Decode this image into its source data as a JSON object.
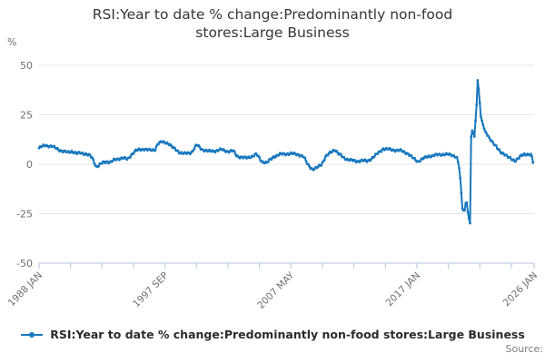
{
  "header": {
    "window_title": "RSI chart"
  },
  "chart_data": {
    "type": "line",
    "title": "RSI:Year to date % change:Predominantly non-food stores:Large Business",
    "unit_label": "%",
    "xlabel": "",
    "ylabel": "%",
    "ylim": [
      -50,
      50
    ],
    "yticks": [
      50,
      25,
      0,
      -25,
      -50
    ],
    "x_start_year": 1988.0,
    "x_end_year": 2026.0,
    "x_minor_tick_interval_months": 29,
    "xtick_labels": [
      {
        "label": "1988 JAN",
        "year": 1988.0
      },
      {
        "label": "1997 SEP",
        "year": 1997.667
      },
      {
        "label": "2007 MAY",
        "year": 2007.333
      },
      {
        "label": "2017 JAN",
        "year": 2017.0
      },
      {
        "label": "2026 JAN",
        "year": 2026.0
      }
    ],
    "grid": true,
    "legend_position": "bottom",
    "series": [
      {
        "name": "RSI:Year to date % change:Predominantly non-food stores:Large Business",
        "color": "#1878be",
        "sampling": "monthly",
        "marker": "circle",
        "anchors": [
          [
            1988.0,
            8.2
          ],
          [
            1988.25,
            9.0
          ],
          [
            1988.5,
            9.6
          ],
          [
            1988.75,
            9.3
          ],
          [
            1989.0,
            9.0
          ],
          [
            1989.4,
            7.8
          ],
          [
            1989.8,
            6.6
          ],
          [
            1990.2,
            6.0
          ],
          [
            1990.5,
            6.6
          ],
          [
            1990.9,
            5.4
          ],
          [
            1991.2,
            5.8
          ],
          [
            1991.6,
            5.2
          ],
          [
            1991.9,
            4.3
          ],
          [
            1992.1,
            3.0
          ],
          [
            1992.4,
            -1.3
          ],
          [
            1992.6,
            -0.6
          ],
          [
            1992.9,
            0.8
          ],
          [
            1993.2,
            1.4
          ],
          [
            1993.5,
            1.1
          ],
          [
            1993.8,
            2.2
          ],
          [
            1994.1,
            2.8
          ],
          [
            1994.4,
            3.3
          ],
          [
            1994.8,
            2.4
          ],
          [
            1995.1,
            5.0
          ],
          [
            1995.4,
            6.8
          ],
          [
            1995.8,
            7.4
          ],
          [
            1996.1,
            7.8
          ],
          [
            1996.5,
            7.0
          ],
          [
            1996.9,
            7.3
          ],
          [
            1997.1,
            10.4
          ],
          [
            1997.4,
            11.2
          ],
          [
            1997.9,
            10.8
          ],
          [
            1998.3,
            8.2
          ],
          [
            1998.8,
            6.0
          ],
          [
            1999.2,
            5.3
          ],
          [
            1999.7,
            6.0
          ],
          [
            2000.1,
            9.8
          ],
          [
            2000.5,
            7.6
          ],
          [
            2001.0,
            6.5
          ],
          [
            2001.5,
            6.8
          ],
          [
            2002.0,
            7.4
          ],
          [
            2002.5,
            6.5
          ],
          [
            2002.9,
            6.8
          ],
          [
            2003.2,
            4.1
          ],
          [
            2003.9,
            3.1
          ],
          [
            2004.4,
            4.2
          ],
          [
            2004.7,
            5.0
          ],
          [
            2005.1,
            1.4
          ],
          [
            2005.5,
            0.8
          ],
          [
            2006.0,
            3.8
          ],
          [
            2006.5,
            5.0
          ],
          [
            2007.0,
            5.3
          ],
          [
            2007.4,
            5.3
          ],
          [
            2007.9,
            5.0
          ],
          [
            2008.3,
            3.8
          ],
          [
            2008.6,
            0.2
          ],
          [
            2009.0,
            -2.6
          ],
          [
            2009.3,
            -2.0
          ],
          [
            2009.7,
            0.2
          ],
          [
            2010.0,
            3.8
          ],
          [
            2010.4,
            6.0
          ],
          [
            2010.7,
            7.6
          ],
          [
            2010.95,
            5.5
          ],
          [
            2011.4,
            3.2
          ],
          [
            2011.8,
            2.3
          ],
          [
            2012.3,
            1.5
          ],
          [
            2012.8,
            1.9
          ],
          [
            2013.2,
            1.5
          ],
          [
            2013.7,
            3.8
          ],
          [
            2014.1,
            6.0
          ],
          [
            2014.4,
            7.9
          ],
          [
            2014.7,
            7.6
          ],
          [
            2015.3,
            7.2
          ],
          [
            2015.8,
            6.8
          ],
          [
            2016.3,
            5.5
          ],
          [
            2016.7,
            3.1
          ],
          [
            2017.1,
            1.4
          ],
          [
            2017.4,
            2.6
          ],
          [
            2017.9,
            4.1
          ],
          [
            2018.4,
            4.5
          ],
          [
            2018.8,
            5.0
          ],
          [
            2019.3,
            5.0
          ],
          [
            2019.8,
            4.5
          ],
          [
            2020.1,
            3.5
          ],
          [
            2020.25,
            -2.0
          ],
          [
            2020.35,
            -8.0
          ],
          [
            2020.5,
            -22.5
          ],
          [
            2020.65,
            -24.0
          ],
          [
            2020.8,
            -17.5
          ],
          [
            2020.95,
            -26.0
          ],
          [
            2021.083,
            -30.0
          ],
          [
            2021.167,
            14.0
          ],
          [
            2021.25,
            17.0
          ],
          [
            2021.417,
            14.0
          ],
          [
            2021.583,
            30.0
          ],
          [
            2021.667,
            42.5
          ],
          [
            2021.75,
            38.0
          ],
          [
            2021.917,
            24.0
          ],
          [
            2022.2,
            17.2
          ],
          [
            2022.45,
            14.5
          ],
          [
            2022.7,
            12.3
          ],
          [
            2022.95,
            9.8
          ],
          [
            2023.2,
            7.8
          ],
          [
            2023.45,
            6.3
          ],
          [
            2023.7,
            5.2
          ],
          [
            2023.95,
            3.7
          ],
          [
            2024.3,
            2.6
          ],
          [
            2024.55,
            1.8
          ],
          [
            2024.85,
            3.2
          ],
          [
            2025.05,
            4.5
          ],
          [
            2025.25,
            5.2
          ],
          [
            2025.55,
            5.0
          ],
          [
            2025.8,
            4.5
          ],
          [
            2025.92,
            1.0
          ]
        ]
      }
    ]
  },
  "legend": {
    "label": "RSI:Year to date % change:Predominantly non-food stores:Large Business"
  },
  "footer": {
    "source_label": "Source:"
  },
  "colors": {
    "accent": "#1878be",
    "grid": "#e4e4e4",
    "axis": "#c3d0e6",
    "tick_text": "#6e6e6e",
    "title_text": "#363636",
    "legend_text": "#2b2b2b",
    "source_text": "#7c7c7c",
    "background": "#ffffff"
  }
}
